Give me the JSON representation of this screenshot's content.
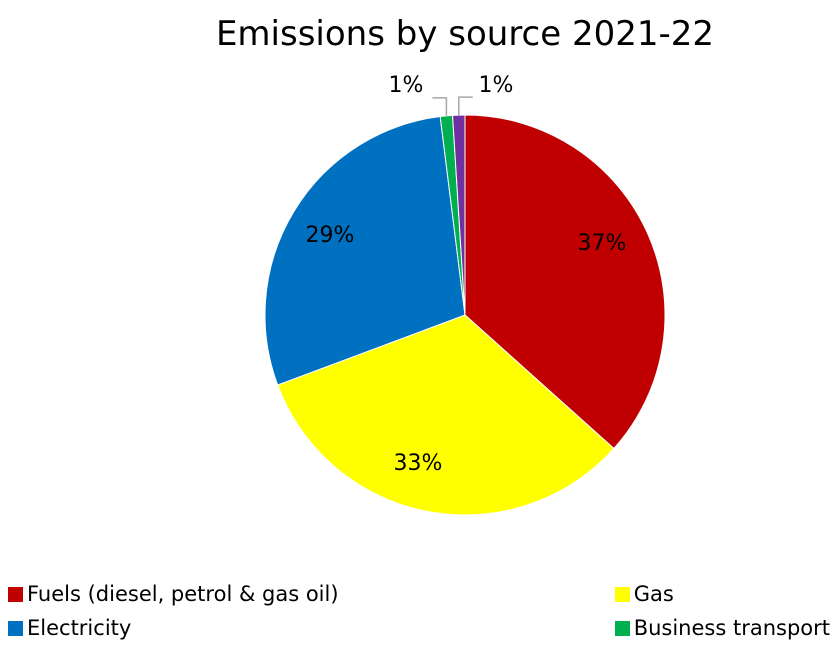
{
  "chart_data": {
    "type": "pie",
    "title": "Emissions by source 2021-22",
    "slices": [
      {
        "label": "Fuels (diesel, petrol & gas oil)",
        "value": 37,
        "display": "37%",
        "color": "#c00000"
      },
      {
        "label": "Gas",
        "value": 33,
        "display": "33%",
        "color": "#ffff00"
      },
      {
        "label": "Electricity",
        "value": 29,
        "display": "29%",
        "color": "#0070c0"
      },
      {
        "label": "Business transport",
        "value": 1,
        "display": "1%",
        "color": "#00b050"
      },
      {
        "label": "",
        "value": 1,
        "display": "1%",
        "color": "#7030a0"
      }
    ],
    "legend": {
      "position": "bottom"
    }
  }
}
